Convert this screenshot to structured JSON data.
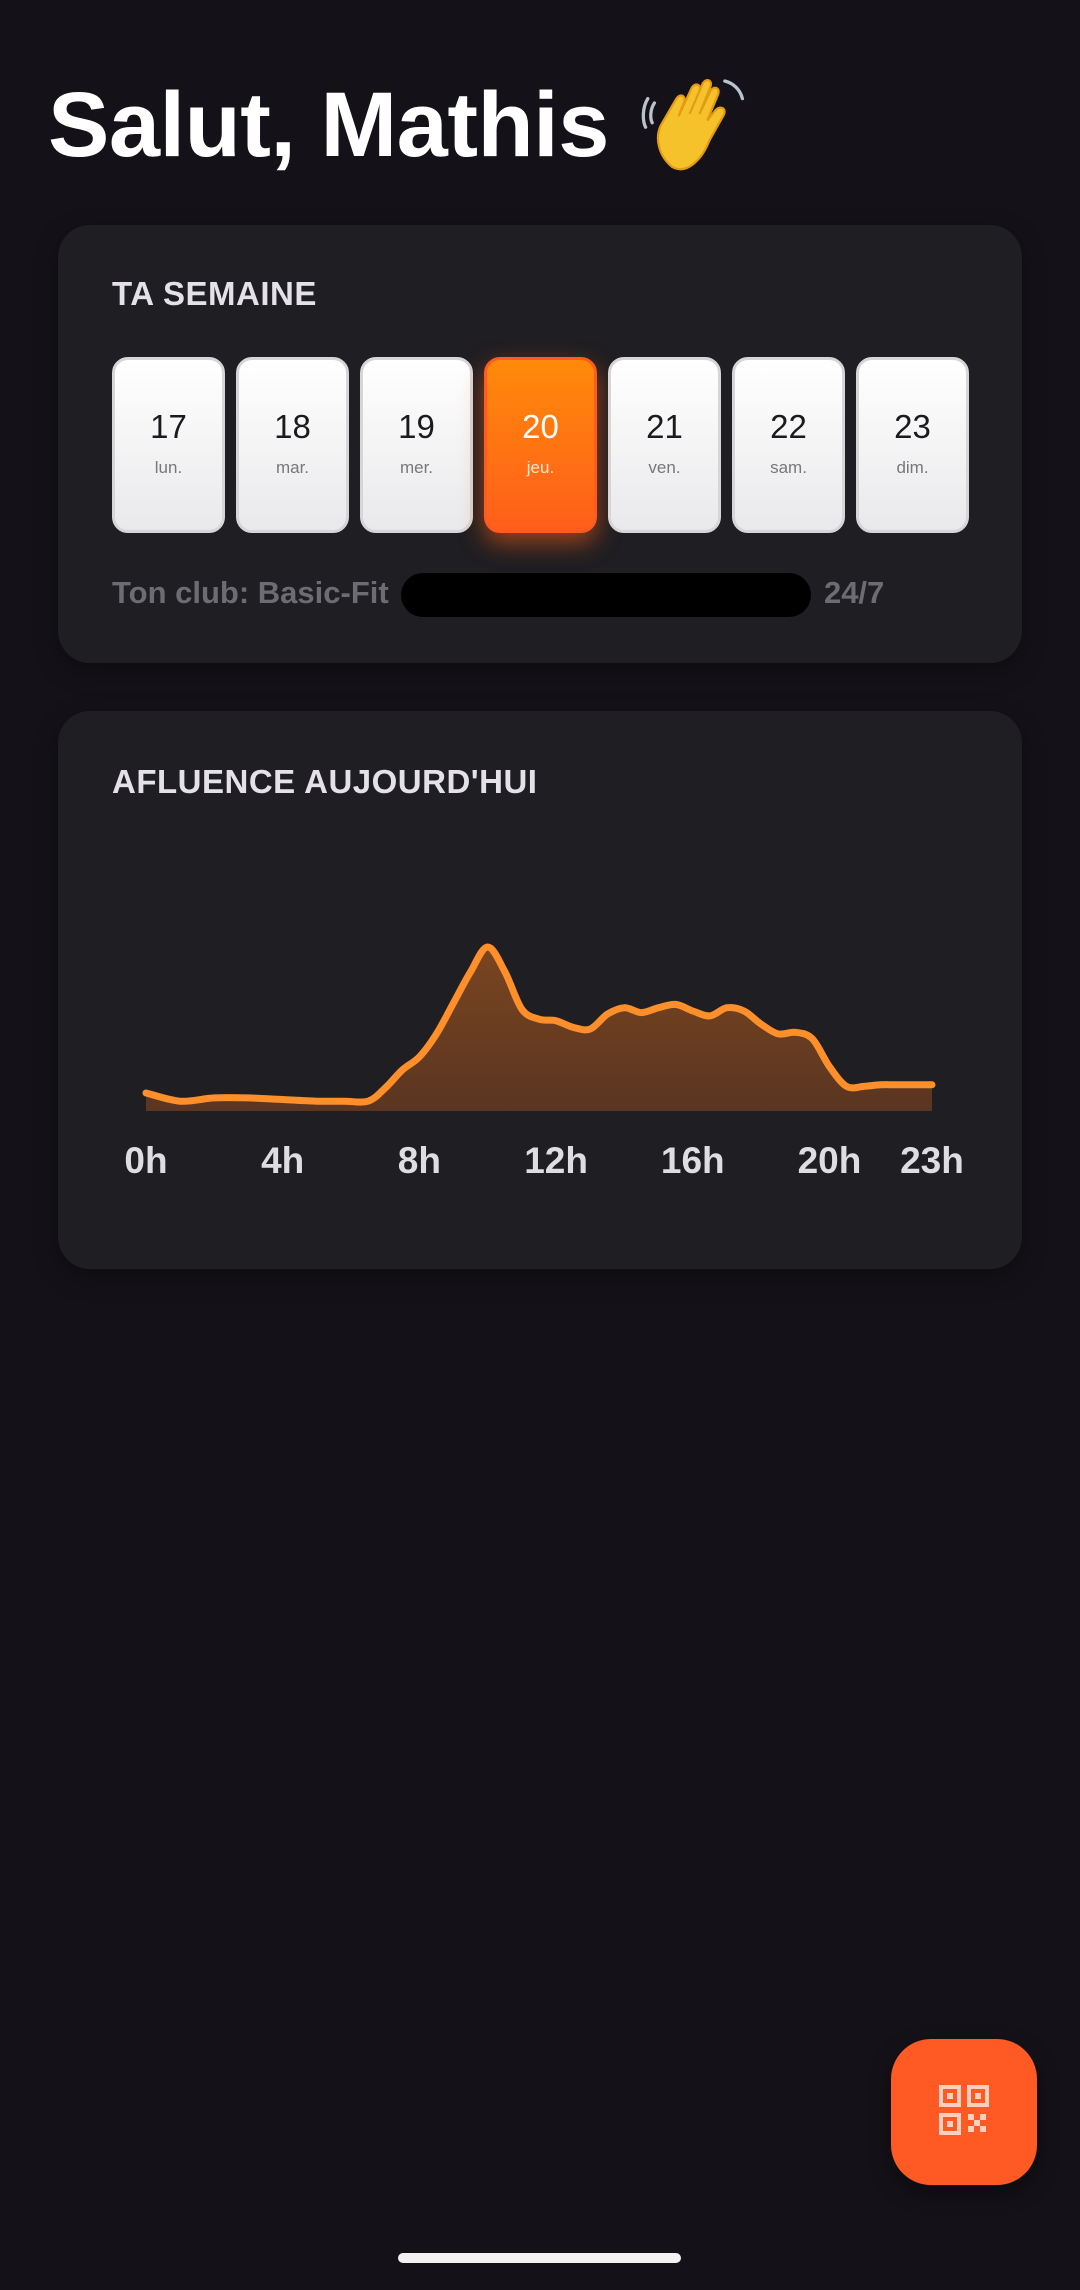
{
  "greeting": {
    "text": "Salut, Mathis",
    "emoji_icon": "waving-hand-icon"
  },
  "week": {
    "title": "TA SEMAINE",
    "days": [
      {
        "num": "17",
        "label": "lun.",
        "active": false
      },
      {
        "num": "18",
        "label": "mar.",
        "active": false
      },
      {
        "num": "19",
        "label": "mer.",
        "active": false
      },
      {
        "num": "20",
        "label": "jeu.",
        "active": true
      },
      {
        "num": "21",
        "label": "ven.",
        "active": false
      },
      {
        "num": "22",
        "label": "sam.",
        "active": false
      },
      {
        "num": "23",
        "label": "dim.",
        "active": false
      }
    ],
    "club_prefix": "Ton club: Basic-Fit",
    "club_suffix": "24/7"
  },
  "affluence": {
    "title": "AFLUENCE AUJOURD'HUI"
  },
  "chart_data": {
    "type": "area",
    "title": "AFLUENCE AUJOURD'HUI",
    "xlabel": "",
    "ylabel": "",
    "x_tick_labels": [
      "0h",
      "4h",
      "8h",
      "12h",
      "16h",
      "20h",
      "23h"
    ],
    "x_ticks": [
      0,
      4,
      8,
      12,
      16,
      20,
      23
    ],
    "xlim": [
      0,
      23
    ],
    "ylim": [
      0,
      100
    ],
    "grid": false,
    "series": [
      {
        "x": [
          0,
          1,
          2,
          3,
          4,
          5,
          5.8,
          6.5,
          7,
          7.5,
          8,
          8.5,
          9,
          9.5,
          10,
          10.5,
          11,
          11.5,
          12,
          12.5,
          13,
          13.5,
          14,
          14.5,
          15,
          15.5,
          16,
          16.5,
          17,
          17.5,
          18,
          18.5,
          19,
          19.5,
          20,
          20.5,
          21,
          21.5,
          22,
          22.5,
          23
        ],
        "values": [
          11,
          6,
          8,
          8,
          7,
          6,
          6,
          6,
          14,
          25,
          33,
          47,
          66,
          85,
          100,
          85,
          62,
          56,
          55,
          51,
          50,
          59,
          63,
          60,
          63,
          65,
          61,
          58,
          63,
          61,
          53,
          47,
          48,
          44,
          27,
          15,
          15,
          16,
          16,
          16,
          16
        ]
      }
    ],
    "colors": {
      "line": "#ff8f2a",
      "fill_top": "#7a4520",
      "fill_bottom": "#5a3521"
    }
  },
  "fab": {
    "icon": "qr-code-icon"
  }
}
